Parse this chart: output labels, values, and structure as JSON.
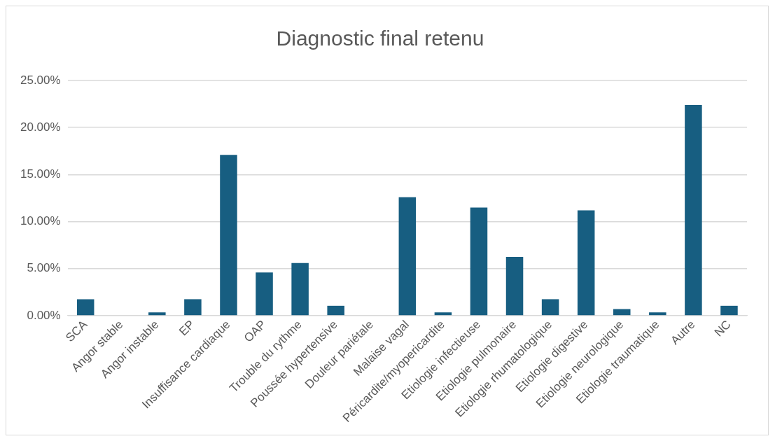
{
  "chart_data": {
    "type": "bar",
    "title": "Diagnostic final retenu",
    "categories": [
      "SCA",
      "Angor stable",
      "Angor instable",
      "EP",
      "Insuffisance cardiaque",
      "OAP",
      "Trouble du rythme",
      "Poussée hypertensive",
      "Douleur pariétale",
      "Malaise vagal",
      "Péricardite/myopericardite",
      "Etiologie infectieuse",
      "Etiologie pulmonaire",
      "Etiologie rhumatologique",
      "Etiologie digestive",
      "Etiologie neurologique",
      "Etiologie traumatique",
      "Autre",
      "NC"
    ],
    "values": [
      1.75,
      0,
      0.35,
      1.75,
      17.1,
      4.6,
      5.6,
      1.05,
      0,
      12.6,
      0.35,
      11.5,
      6.25,
      1.75,
      11.2,
      0.7,
      0.35,
      22.4,
      1.05
    ],
    "color": "#175e81",
    "ylim": [
      0,
      25
    ],
    "yticks": [
      {
        "value": 0,
        "label": "0.00%"
      },
      {
        "value": 5,
        "label": "5.00%"
      },
      {
        "value": 10,
        "label": "10.00%"
      },
      {
        "value": 15,
        "label": "15.00%"
      },
      {
        "value": 20,
        "label": "20.00%"
      },
      {
        "value": 25,
        "label": "25.00%"
      }
    ],
    "grid": "y",
    "legend": false
  }
}
